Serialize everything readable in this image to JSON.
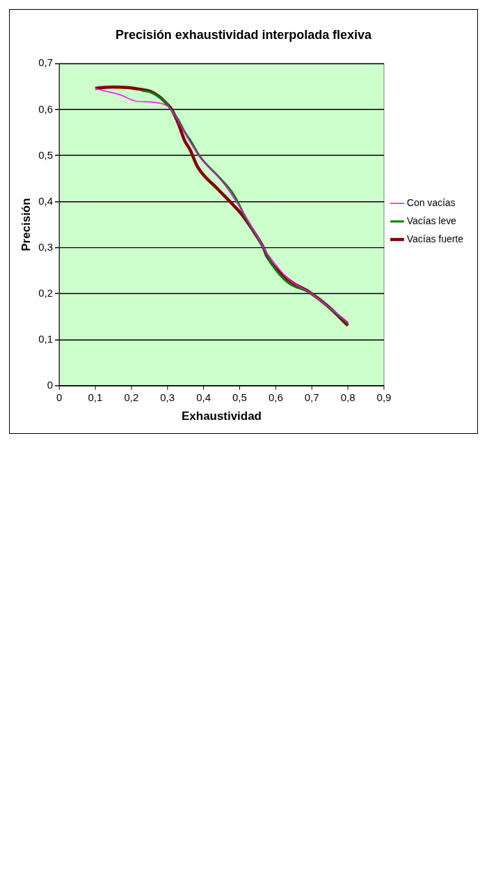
{
  "chart_data": {
    "type": "line",
    "title": "Precisión exhaustividad interpolada flexiva",
    "xlabel": "Exhaustividad",
    "ylabel": "Precisión",
    "xlim": [
      0,
      0.9
    ],
    "xticks": [
      0,
      {
        "value": 0.1,
        "label": "0,1"
      },
      {
        "value": 0.2,
        "label": "0,2"
      },
      {
        "value": 0.3,
        "label": "0,3"
      },
      {
        "value": 0.4,
        "label": "0,4"
      },
      {
        "value": 0.5,
        "label": "0,5"
      },
      {
        "value": 0.6,
        "label": "0,6"
      },
      {
        "value": 0.7,
        "label": "0,7"
      },
      {
        "value": 0.8,
        "label": "0,8"
      },
      {
        "value": 0.9,
        "label": "0,9"
      }
    ],
    "ylim": [
      0,
      0.7
    ],
    "yticks": [
      0,
      {
        "value": 0.1,
        "label": "0,1"
      },
      {
        "value": 0.2,
        "label": "0,2"
      },
      {
        "value": 0.3,
        "label": "0,3"
      },
      {
        "value": 0.4,
        "label": "0,4"
      },
      {
        "value": 0.5,
        "label": "0,5"
      },
      {
        "value": 0.6,
        "label": "0,6"
      },
      {
        "value": 0.7,
        "label": "0,7"
      }
    ],
    "grid": "y",
    "legend": "right",
    "marker": "none",
    "line_style": "solid",
    "series": [
      {
        "name": "Con vacías",
        "color": "#ff00ff",
        "x": [
          0.1,
          0.12,
          0.17,
          0.21,
          0.26,
          0.3,
          0.31,
          0.33,
          0.35,
          0.36,
          0.39,
          0.45,
          0.48,
          0.515,
          0.548,
          0.566,
          0.598,
          0.637,
          0.694,
          0.744,
          0.8
        ],
        "values": [
          0.646,
          0.642,
          0.632,
          0.619,
          0.616,
          0.608,
          0.6,
          0.575,
          0.546,
          0.533,
          0.496,
          0.445,
          0.413,
          0.37,
          0.326,
          0.3,
          0.265,
          0.23,
          0.203,
          0.173,
          0.138
        ]
      },
      {
        "name": "Vacías leve",
        "color": "#008000",
        "x": [
          0.23,
          0.252,
          0.276,
          0.298,
          0.31,
          0.33,
          0.348,
          0.362,
          0.391,
          0.448,
          0.483,
          0.515,
          0.548,
          0.566,
          0.59,
          0.637,
          0.694,
          0.744,
          0.8
        ],
        "values": [
          0.641,
          0.638,
          0.628,
          0.613,
          0.6,
          0.578,
          0.551,
          0.535,
          0.497,
          0.449,
          0.416,
          0.368,
          0.324,
          0.3,
          0.263,
          0.222,
          0.203,
          0.172,
          0.136
        ]
      },
      {
        "name": "Vacías fuerte",
        "color": "#800000",
        "x": [
          0.1,
          0.12,
          0.15,
          0.19,
          0.234,
          0.252,
          0.276,
          0.298,
          0.312,
          0.33,
          0.348,
          0.362,
          0.384,
          0.44,
          0.477,
          0.505,
          0.548,
          0.566,
          0.576,
          0.637,
          0.694,
          0.744,
          0.8
        ],
        "values": [
          0.646,
          0.648,
          0.649,
          0.648,
          0.643,
          0.64,
          0.629,
          0.613,
          0.6,
          0.57,
          0.532,
          0.514,
          0.475,
          0.427,
          0.397,
          0.373,
          0.324,
          0.3,
          0.281,
          0.229,
          0.203,
          0.173,
          0.131
        ]
      }
    ]
  }
}
